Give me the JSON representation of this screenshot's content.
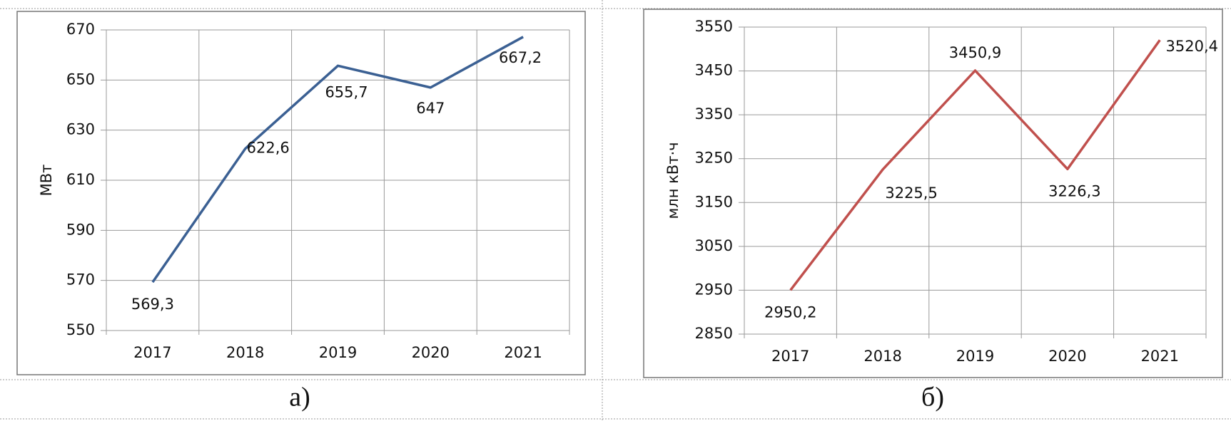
{
  "chart_data": [
    {
      "type": "line",
      "caption": "а)",
      "y_label": "МВт",
      "categories": [
        "2017",
        "2018",
        "2019",
        "2020",
        "2021"
      ],
      "series": [
        {
          "color": "#3b6093",
          "values": [
            569.3,
            622.6,
            655.7,
            647,
            667.2
          ],
          "value_labels": [
            "569,3",
            "622,6",
            "655,7",
            "647",
            "667,2"
          ]
        }
      ],
      "ylim": [
        550,
        670
      ],
      "yticks": [
        550,
        570,
        590,
        610,
        630,
        650,
        670
      ],
      "grid": true
    },
    {
      "type": "line",
      "caption": "б)",
      "y_label": "млн кВт·ч",
      "categories": [
        "2017",
        "2018",
        "2019",
        "2020",
        "2021"
      ],
      "series": [
        {
          "color": "#c0504d",
          "values": [
            2950.2,
            3225.5,
            3450.9,
            3226.3,
            3520.4
          ],
          "value_labels": [
            "2950,2",
            "3225,5",
            "3450,9",
            "3226,3",
            "3520,4"
          ]
        }
      ],
      "ylim": [
        2850,
        3550
      ],
      "yticks": [
        2850,
        2950,
        3050,
        3150,
        3250,
        3350,
        3450,
        3550
      ],
      "grid": true
    }
  ]
}
